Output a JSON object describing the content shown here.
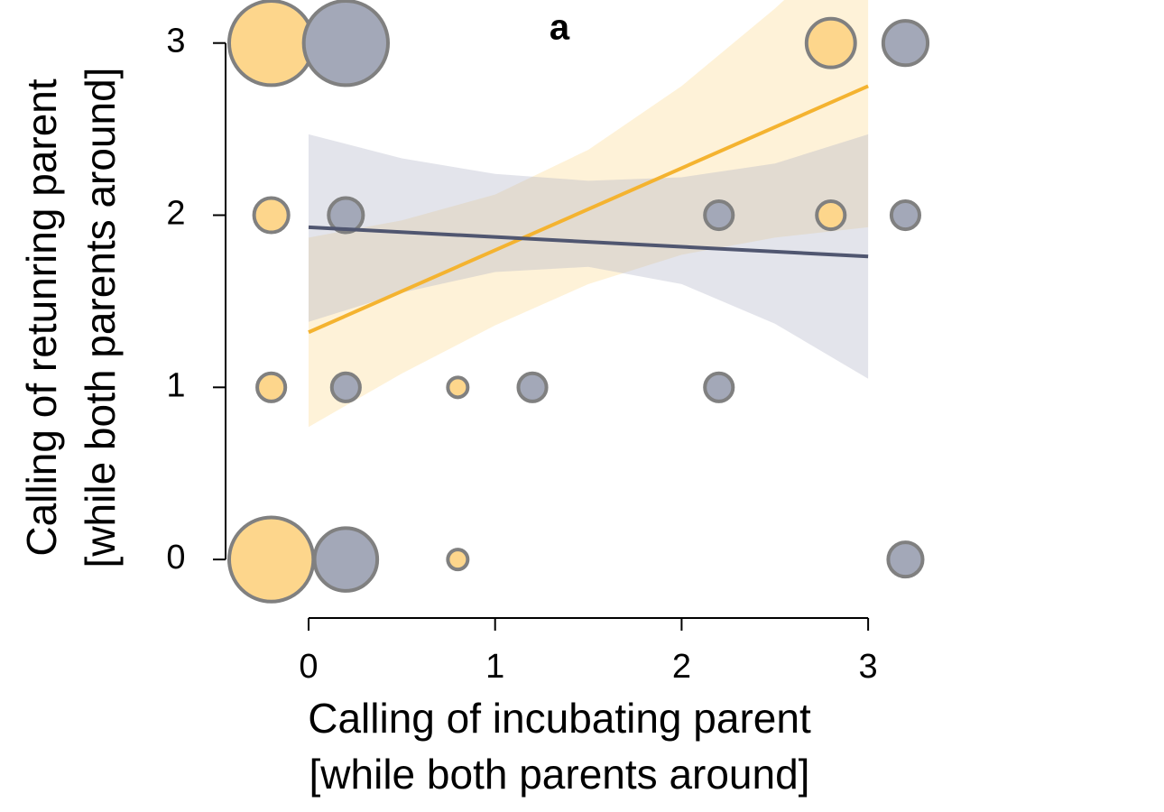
{
  "chart_data": {
    "type": "bubble",
    "title": "a",
    "x_label": [
      "Calling of incubating parent",
      "[while both parents around]"
    ],
    "y_label": [
      "Calling of retunring parent",
      "[while both parents around]"
    ],
    "xlim": [
      -0.445,
      3.43
    ],
    "ylim": [
      -0.34,
      3.25
    ],
    "xticks": [
      0,
      1,
      2,
      3
    ],
    "yticks": [
      0,
      1,
      2,
      3
    ],
    "series": [
      {
        "color": "#fdd68c",
        "line_color": "#f4b330",
        "band_color": "#fcd98e",
        "x": [
          -0.2,
          0.8,
          -0.2,
          0.8,
          -0.2,
          2.8,
          -0.2,
          2.8
        ],
        "values": [
          0,
          0,
          1,
          1,
          2,
          2,
          3,
          3
        ],
        "sizes": [
          18,
          1,
          2,
          1,
          3,
          2,
          18,
          6
        ],
        "fit": {
          "x": [
            0,
            3
          ],
          "values": [
            1.32,
            2.75
          ]
        },
        "band": {
          "x": [
            0,
            0.5,
            1,
            1.5,
            2,
            2.5,
            3
          ],
          "lower": [
            0.77,
            1.08,
            1.36,
            1.6,
            1.77,
            1.87,
            1.93
          ],
          "upper": [
            1.87,
            1.97,
            2.12,
            2.38,
            2.75,
            3.2,
            3.7
          ]
        }
      },
      {
        "color": "#a3a8b8",
        "line_color": "#505670",
        "band_color": "#aeb2c6",
        "x": [
          0.2,
          3.2,
          0.2,
          1.2,
          2.2,
          0.2,
          2.2,
          3.2,
          0.2,
          3.2
        ],
        "values": [
          0,
          0,
          1,
          1,
          1,
          2,
          2,
          2,
          3,
          3
        ],
        "sizes": [
          10,
          3,
          2,
          2,
          2,
          3,
          2,
          2,
          18,
          5
        ],
        "fit": {
          "x": [
            0,
            3
          ],
          "values": [
            1.93,
            1.76
          ]
        },
        "band": {
          "x": [
            0,
            0.5,
            1,
            1.5,
            2,
            2.5,
            3
          ],
          "lower": [
            1.38,
            1.55,
            1.67,
            1.7,
            1.6,
            1.37,
            1.05
          ],
          "upper": [
            2.47,
            2.33,
            2.24,
            2.2,
            2.22,
            2.3,
            2.47
          ]
        }
      }
    ]
  }
}
